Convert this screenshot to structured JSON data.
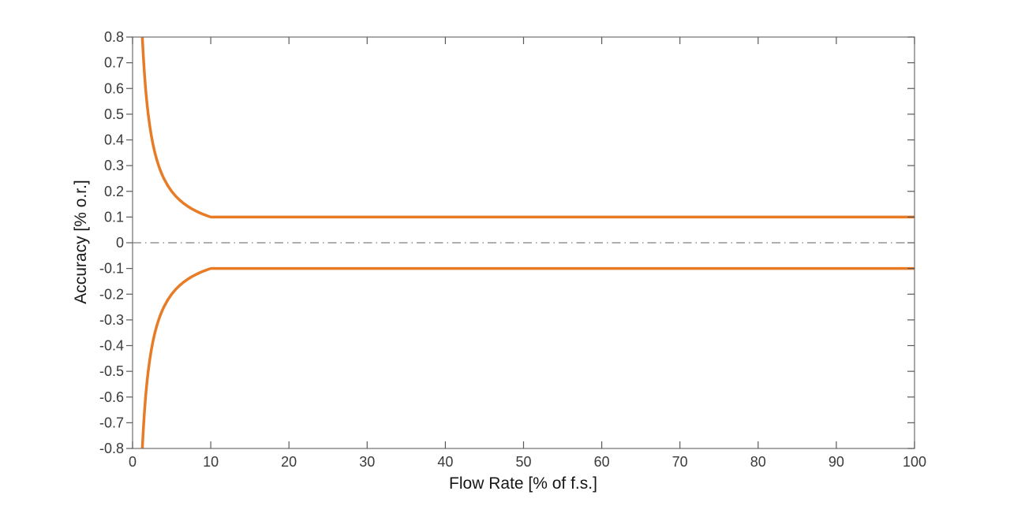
{
  "figure": {
    "background": "#ffffff",
    "title": ""
  },
  "chart_data": {
    "type": "line",
    "title": "",
    "xlabel": "Flow Rate [% of f.s.]",
    "ylabel": "Accuracy [% o.r.]",
    "xlim": [
      0,
      100
    ],
    "ylim": [
      -0.8,
      0.8
    ],
    "grid": false,
    "legend": null,
    "box": true,
    "x_ticks": {
      "values": [
        0,
        10,
        20,
        30,
        40,
        50,
        60,
        70,
        80,
        90,
        100
      ],
      "labels": [
        "0",
        "10",
        "20",
        "30",
        "40",
        "50",
        "60",
        "70",
        "80",
        "90",
        "100"
      ]
    },
    "y_ticks": {
      "values": [
        0.8,
        0.7,
        0.6,
        0.5,
        0.4,
        0.3,
        0.2,
        0.1,
        0,
        -0.1,
        -0.2,
        -0.3,
        -0.4,
        -0.5,
        -0.6,
        -0.7,
        -0.8
      ],
      "labels": [
        "0.8",
        "0.7",
        "0.6",
        "0.5",
        "0.4",
        "0.3",
        "0.2",
        "0.1",
        "0",
        "-0.1",
        "-0.2",
        "-0.3",
        "-0.4",
        "-0.5",
        "-0.6",
        "-0.7",
        "-0.8"
      ]
    },
    "series": [
      {
        "name": "upper-accuracy-limit",
        "relation": "y = max(0.1, 1/x), clipped at +0.8",
        "color": "#E87B25",
        "line_width": 3.5,
        "style": "solid",
        "x": [
          1.25,
          1.3,
          1.4,
          1.5,
          1.6,
          1.7,
          1.8,
          1.9,
          2,
          2.2,
          2.4,
          2.6,
          2.8,
          3,
          3.25,
          3.5,
          3.75,
          4,
          4.5,
          5,
          5.5,
          6,
          6.5,
          7,
          7.5,
          8,
          8.5,
          9,
          9.5,
          10,
          100
        ],
        "y": [
          0.8,
          0.7692,
          0.7143,
          0.6667,
          0.625,
          0.5882,
          0.5556,
          0.5263,
          0.5,
          0.4545,
          0.4167,
          0.3846,
          0.3571,
          0.3333,
          0.3077,
          0.2857,
          0.2667,
          0.25,
          0.2222,
          0.2,
          0.1818,
          0.1667,
          0.1538,
          0.1429,
          0.1333,
          0.125,
          0.1176,
          0.1111,
          0.1053,
          0.1,
          0.1
        ]
      },
      {
        "name": "lower-accuracy-limit",
        "relation": "y = -max(0.1, 1/x), clipped at -0.8",
        "color": "#E87B25",
        "line_width": 3.5,
        "style": "solid",
        "x": [
          1.25,
          1.3,
          1.4,
          1.5,
          1.6,
          1.7,
          1.8,
          1.9,
          2,
          2.2,
          2.4,
          2.6,
          2.8,
          3,
          3.25,
          3.5,
          3.75,
          4,
          4.5,
          5,
          5.5,
          6,
          6.5,
          7,
          7.5,
          8,
          8.5,
          9,
          9.5,
          10,
          100
        ],
        "y": [
          -0.8,
          -0.7692,
          -0.7143,
          -0.6667,
          -0.625,
          -0.5882,
          -0.5556,
          -0.5263,
          -0.5,
          -0.4545,
          -0.4167,
          -0.3846,
          -0.3571,
          -0.3333,
          -0.3077,
          -0.2857,
          -0.2667,
          -0.25,
          -0.2222,
          -0.2,
          -0.1818,
          -0.1667,
          -0.1538,
          -0.1429,
          -0.1333,
          -0.125,
          -0.1176,
          -0.1111,
          -0.1053,
          -0.1,
          -0.1
        ]
      },
      {
        "name": "zero-reference-line",
        "relation": "y = 0",
        "color": "#5f5f5f",
        "line_width": 1,
        "style": "dash-dot",
        "x": [
          0,
          100
        ],
        "y": [
          0,
          0
        ]
      }
    ],
    "colors": {
      "axis_box": "#6f6f6f",
      "tick_mark": "#5a5a5a",
      "tick_label": "#3a3a3a",
      "axis_title": "#161616",
      "curve_orange": "#E87B25",
      "zero_line": "#5f5f5f"
    }
  }
}
